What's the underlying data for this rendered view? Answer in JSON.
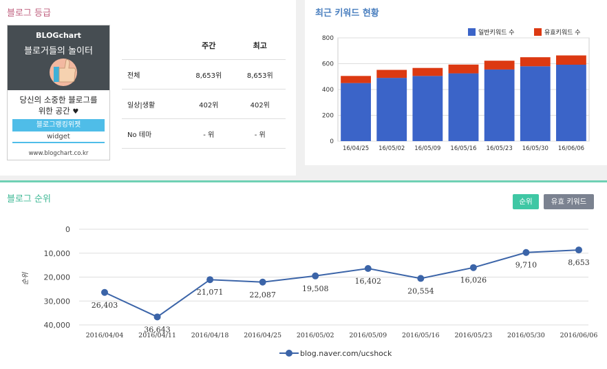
{
  "grade": {
    "title": "블로그 등급",
    "widget": {
      "logo": "BLOGchart",
      "title": "블로거들의 놀이터",
      "desc_line1": "당신의 소중한 블로그를",
      "desc_line2": "위한 공간",
      "button_label": "블로그랭킹위젯",
      "sub_label": "widget",
      "url": "www.blogchart.co.kr"
    },
    "table": {
      "headers": [
        "",
        "주간",
        "최고"
      ],
      "rows": [
        {
          "label": "전체",
          "weekly": "8,653위",
          "best": "8,653위"
        },
        {
          "label": "일상|생활",
          "weekly": "402위",
          "best": "402위"
        },
        {
          "label": "No 테마",
          "weekly": "- 위",
          "best": "- 위"
        }
      ]
    }
  },
  "keywords": {
    "title": "최근 키워드 현황"
  },
  "ranking": {
    "title": "블로그 순위",
    "buttons": {
      "rank": "순위",
      "keyword": "유효 키워드"
    }
  },
  "colors": {
    "general_kw": "#3b64c8",
    "valid_kw": "#dc3912",
    "line": "#3b64a8",
    "accent": "#3fc7a4"
  },
  "chart_data": [
    {
      "type": "bar",
      "stacked": true,
      "categories": [
        "16/04/25",
        "16/05/02",
        "16/05/09",
        "16/05/16",
        "16/05/23",
        "16/05/30",
        "16/06/06"
      ],
      "series": [
        {
          "name": "일반키워드 수",
          "values": [
            450,
            490,
            505,
            525,
            555,
            580,
            592
          ]
        },
        {
          "name": "유효키워드 수",
          "values": [
            55,
            62,
            62,
            68,
            68,
            70,
            72
          ]
        }
      ],
      "yticks": [
        "0",
        "200",
        "400",
        "600",
        "800"
      ],
      "ylim": [
        0,
        800
      ],
      "legend": "top-right",
      "grid": true
    },
    {
      "type": "line",
      "categories": [
        "2016/04/04",
        "2016/04/11",
        "2016/04/18",
        "2016/04/25",
        "2016/05/02",
        "2016/05/09",
        "2016/05/16",
        "2016/05/23",
        "2016/05/30",
        "2016/06/06"
      ],
      "series": [
        {
          "name": "blog.naver.com/ucshock",
          "values": [
            26403,
            36643,
            21071,
            22087,
            19508,
            16402,
            20554,
            16026,
            9710,
            8653
          ],
          "labels": [
            "26,403",
            "36,643",
            "21,071",
            "22,087",
            "19,508",
            "16,402",
            "20,554",
            "16,026",
            "9,710",
            "8,653"
          ]
        }
      ],
      "ylabel": "순위",
      "yticks": [
        "0",
        "10,000",
        "20,000",
        "30,000",
        "40,000"
      ],
      "ylim": [
        0,
        40000
      ],
      "y_reversed": true,
      "legend": "bottom",
      "grid": true
    }
  ]
}
